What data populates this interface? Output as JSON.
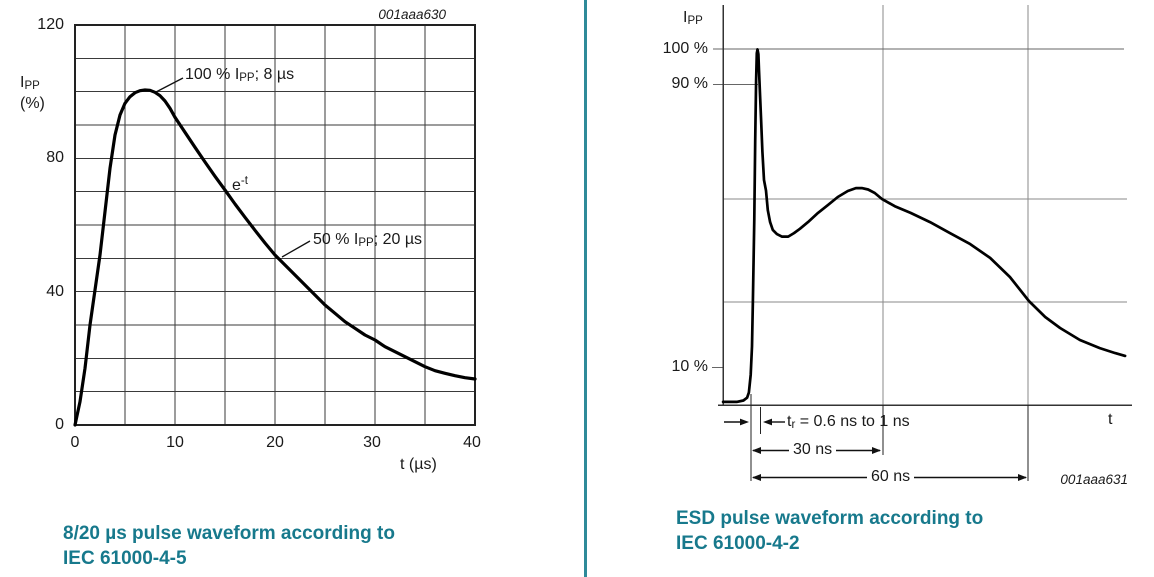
{
  "page": {
    "background": "#ffffff",
    "divider_color": "#2e8a99",
    "caption_color": "#17798c",
    "curve_color": "#000000",
    "grid_color_left": "#3a3a3a",
    "grid_color_right": "#8a8a8a"
  },
  "left": {
    "fig_id": "001aaa630",
    "y_axis_label": {
      "pre": "I",
      "sub": "PP",
      "unit": "(%)"
    },
    "y_ticks": [
      "120",
      "80",
      "40",
      "0"
    ],
    "x_ticks": [
      "0",
      "10",
      "20",
      "30",
      "40"
    ],
    "x_axis_label": "t (µs)",
    "ann_peak": {
      "pre": "100 % I",
      "sub": "PP",
      "post": "; 8 µs"
    },
    "ann_exp": {
      "base": "e",
      "sup": "-t"
    },
    "ann_half": {
      "pre": "50 % I",
      "sub": "PP",
      "post": "; 20 µs"
    },
    "caption_line1": "8/20 µs pulse waveform according to",
    "caption_line2": "IEC 61000-4-5",
    "chart_data": {
      "type": "line",
      "title": "8/20 µs pulse waveform according to IEC 61000-4-5",
      "xlabel": "t (µs)",
      "ylabel": "IPP (%)",
      "xlim": [
        0,
        40
      ],
      "ylim": [
        0,
        120
      ],
      "x_gridline_step": 5,
      "y_gridline_step": 10,
      "x_tick_values": [
        0,
        10,
        20,
        30,
        40
      ],
      "y_tick_values": [
        0,
        40,
        80,
        120
      ],
      "key_points": [
        {
          "label": "100 % IPP; 8 µs",
          "t_us": 8,
          "pct": 100
        },
        {
          "label": "50 % IPP; 20 µs",
          "t_us": 20,
          "pct": 50
        }
      ],
      "curve": [
        [
          0,
          0
        ],
        [
          0.5,
          7
        ],
        [
          1,
          17
        ],
        [
          1.5,
          30
        ],
        [
          2,
          40.5
        ],
        [
          2.5,
          51
        ],
        [
          3,
          64
        ],
        [
          3.5,
          77
        ],
        [
          4,
          87
        ],
        [
          4.5,
          93
        ],
        [
          5,
          96.5
        ],
        [
          5.5,
          98.5
        ],
        [
          6,
          99.7
        ],
        [
          6.5,
          100.3
        ],
        [
          7,
          100.5
        ],
        [
          7.5,
          100.4
        ],
        [
          8,
          99.8
        ],
        [
          8.5,
          98.8
        ],
        [
          9,
          97.2
        ],
        [
          9.5,
          95
        ],
        [
          10,
          92.3
        ],
        [
          11,
          87.8
        ],
        [
          12,
          83.3
        ],
        [
          13,
          78.9
        ],
        [
          14,
          74.6
        ],
        [
          15,
          70.5
        ],
        [
          16,
          66.3
        ],
        [
          17,
          62.3
        ],
        [
          18,
          58.4
        ],
        [
          19,
          54.6
        ],
        [
          20,
          51
        ],
        [
          21,
          48
        ],
        [
          22,
          45
        ],
        [
          23,
          42
        ],
        [
          24,
          39
        ],
        [
          25,
          36
        ],
        [
          26,
          33.5
        ],
        [
          27,
          31
        ],
        [
          28,
          29
        ],
        [
          29,
          27
        ],
        [
          30,
          25.5
        ],
        [
          31,
          23.5
        ],
        [
          32,
          22
        ],
        [
          33,
          20.5
        ],
        [
          34,
          19
        ],
        [
          35,
          17.5
        ],
        [
          36,
          16.3
        ],
        [
          37,
          15.5
        ],
        [
          38,
          14.8
        ],
        [
          39,
          14.2
        ],
        [
          40,
          13.8
        ]
      ]
    }
  },
  "right": {
    "fig_id": "001aaa631",
    "y_axis_label": {
      "pre": "I",
      "sub": "PP"
    },
    "y_ref_labels": [
      "100 %",
      "90 %",
      "10 %"
    ],
    "x_axis_label": "t",
    "ann_rise": {
      "pre": "t",
      "sub": "r",
      "post": " = 0.6 ns to 1 ns"
    },
    "ann_30ns": "30 ns",
    "ann_60ns": "60 ns",
    "caption_line1": "ESD pulse waveform according to",
    "caption_line2": "IEC 61000-4-2",
    "chart_data": {
      "type": "line",
      "title": "ESD pulse waveform according to IEC 61000-4-2",
      "xlabel": "t",
      "ylabel": "IPP",
      "x_unit": "ns",
      "y_unit": "% of IPP",
      "y_ref_lines_pct": [
        100,
        90,
        10
      ],
      "h_gridlines_pct": [
        57.6,
        28.5
      ],
      "v_gridlines_ns": [
        27.9,
        60
      ],
      "rise_time_label": "tr = 0.6 ns to 1 ns",
      "time_markers_ns": [
        30,
        60
      ],
      "curve": [
        [
          -7.5,
          0.3
        ],
        [
          -4.5,
          0.3
        ],
        [
          -3,
          0.7
        ],
        [
          -2.2,
          1.5
        ],
        [
          -1.8,
          3
        ],
        [
          -1.4,
          8
        ],
        [
          -1.1,
          16
        ],
        [
          -0.9,
          29
        ],
        [
          -0.6,
          52
        ],
        [
          -0.4,
          74
        ],
        [
          -0.2,
          91
        ],
        [
          -0.05,
          98.8
        ],
        [
          0.1,
          99.9
        ],
        [
          0.3,
          98.5
        ],
        [
          0.45,
          94
        ],
        [
          0.7,
          86
        ],
        [
          0.9,
          80
        ],
        [
          1.2,
          71
        ],
        [
          1.55,
          63
        ],
        [
          2,
          60
        ],
        [
          2.4,
          54.5
        ],
        [
          2.9,
          51.1
        ],
        [
          3.5,
          48.9
        ],
        [
          4.4,
          47.7
        ],
        [
          5.5,
          47
        ],
        [
          6.9,
          47
        ],
        [
          8.2,
          48
        ],
        [
          9.5,
          49.2
        ],
        [
          11.3,
          51.1
        ],
        [
          13.5,
          53.7
        ],
        [
          15.7,
          55.9
        ],
        [
          17.9,
          58.2
        ],
        [
          20.1,
          59.9
        ],
        [
          21.9,
          60.7
        ],
        [
          23.2,
          60.7
        ],
        [
          24.6,
          60.3
        ],
        [
          26.1,
          59.3
        ],
        [
          27.7,
          57.6
        ],
        [
          30.5,
          55.6
        ],
        [
          34,
          53.7
        ],
        [
          38.3,
          51.1
        ],
        [
          42.7,
          48
        ],
        [
          47.2,
          44.9
        ],
        [
          51.6,
          41
        ],
        [
          56,
          35.6
        ],
        [
          60.2,
          28.8
        ],
        [
          63.8,
          24.3
        ],
        [
          67.1,
          21.2
        ],
        [
          71.5,
          17.8
        ],
        [
          75.9,
          15.5
        ],
        [
          79.3,
          14.1
        ],
        [
          81.5,
          13.3
        ]
      ]
    }
  }
}
